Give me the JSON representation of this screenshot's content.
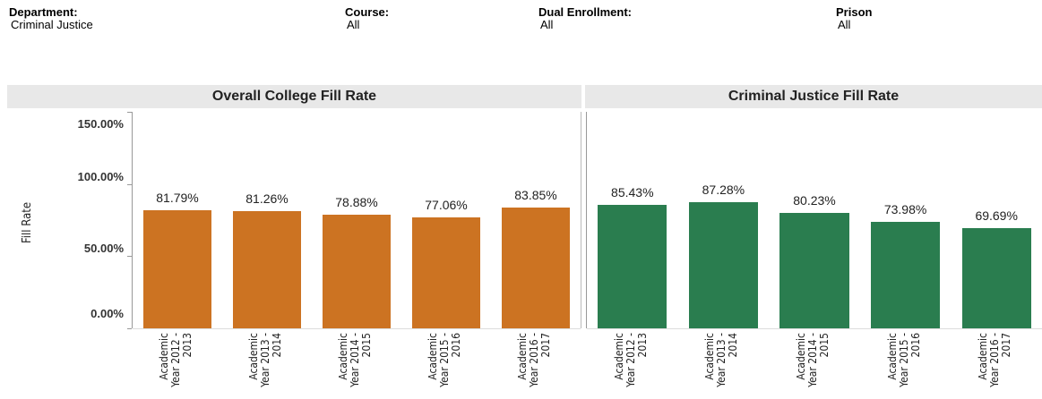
{
  "filters": [
    {
      "label": "Department:",
      "value": "Criminal Justice"
    },
    {
      "label": "Course:",
      "value": "All"
    },
    {
      "label": "Dual Enrollment:",
      "value": "All"
    },
    {
      "label": "Prison",
      "value": "All"
    }
  ],
  "chart_data": [
    {
      "type": "bar",
      "title": "Overall College Fill Rate",
      "ylabel": "Fill Rate",
      "categories": [
        "Academic Year 2012 - 2013",
        "Academic Year 2013 - 2014",
        "Academic Year 2014 - 2015",
        "Academic Year 2015 - 2016",
        "Academic Year 2016 - 2017"
      ],
      "values": [
        81.79,
        81.26,
        78.88,
        77.06,
        83.85
      ],
      "value_labels": [
        "81.79%",
        "81.26%",
        "78.88%",
        "77.06%",
        "83.85%"
      ],
      "color": "#cc7322",
      "ylim": [
        0,
        150
      ],
      "yticks": [
        {
          "value": 0,
          "label": "0.00%"
        },
        {
          "value": 50,
          "label": "50.00%"
        },
        {
          "value": 100,
          "label": "100.00%"
        },
        {
          "value": 150,
          "label": "150.00%"
        }
      ]
    },
    {
      "type": "bar",
      "title": "Criminal Justice Fill Rate",
      "categories": [
        "Academic Year 2012 - 2013",
        "Academic Year 2013 - 2014",
        "Academic Year 2014 - 2015",
        "Academic Year 2015 - 2016",
        "Academic Year 2016 - 2017"
      ],
      "values": [
        85.43,
        87.28,
        80.23,
        73.98,
        69.69
      ],
      "value_labels": [
        "85.43%",
        "87.28%",
        "80.23%",
        "73.98%",
        "69.69%"
      ],
      "color": "#2a7d4f",
      "ylim": [
        0,
        150
      ]
    }
  ]
}
